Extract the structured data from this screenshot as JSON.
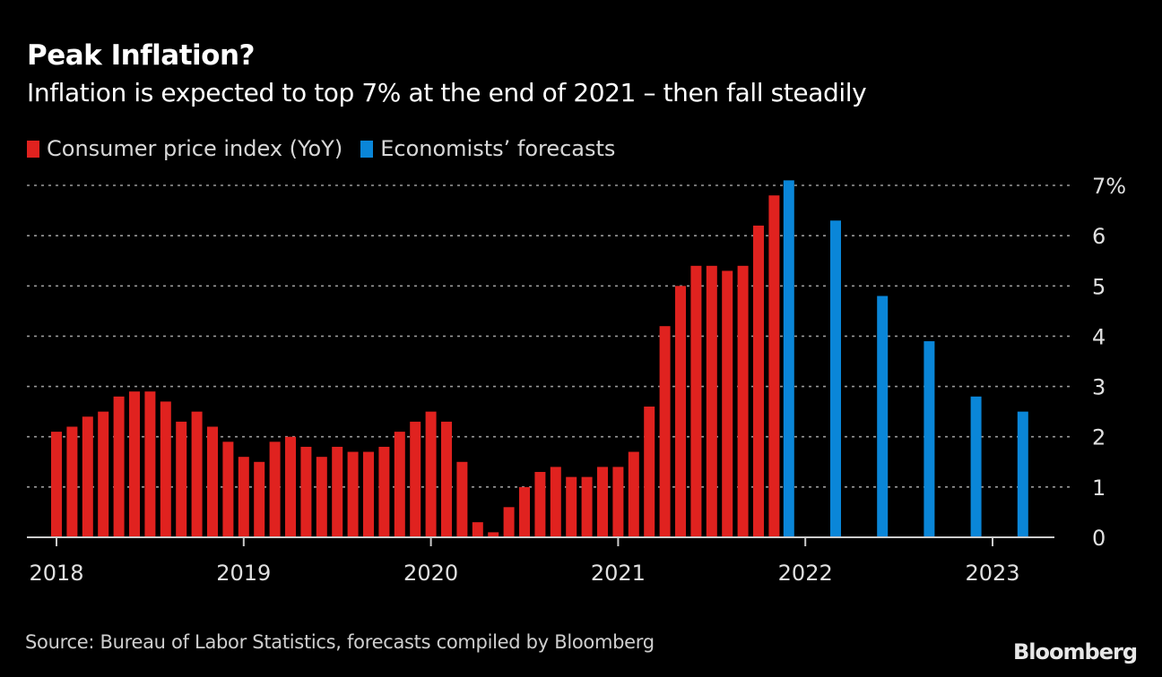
{
  "chart_data": {
    "type": "bar",
    "title": "Peak Inflation?",
    "subtitle": "Inflation is expected to top 7% at the end of 2021 – then fall steadily",
    "xlabel": "",
    "ylabel": "",
    "ylim": [
      0,
      7
    ],
    "yticks": [
      "0",
      "1",
      "2",
      "3",
      "4",
      "5",
      "6",
      "7%"
    ],
    "ytick_values": [
      0,
      1,
      2,
      3,
      4,
      5,
      6,
      7
    ],
    "xticks": [
      "2018",
      "2019",
      "2020",
      "2021",
      "2022",
      "2023"
    ],
    "grid": true,
    "legend_position": "top-left",
    "series": [
      {
        "name": "Consumer price index (YoY)",
        "color": "#e0221f",
        "start": "2018-01",
        "frequency": "monthly",
        "values": [
          2.1,
          2.2,
          2.4,
          2.5,
          2.8,
          2.9,
          2.9,
          2.7,
          2.3,
          2.5,
          2.2,
          1.9,
          1.6,
          1.5,
          1.9,
          2.0,
          1.8,
          1.6,
          1.8,
          1.7,
          1.7,
          1.8,
          2.1,
          2.3,
          2.5,
          2.3,
          1.5,
          0.3,
          0.1,
          0.6,
          1.0,
          1.3,
          1.4,
          1.2,
          1.2,
          1.4,
          1.4,
          1.7,
          2.6,
          4.2,
          5.0,
          5.4,
          5.4,
          5.3,
          5.4,
          6.2,
          6.8
        ]
      },
      {
        "name": "Economists’ forecasts",
        "color": "#0a86d8",
        "periods": [
          "2021-12",
          "2022-Q1",
          "2022-Q2",
          "2022-Q3",
          "2022-Q4",
          "2023-Q1"
        ],
        "month_index": [
          47,
          50,
          53,
          56,
          59,
          62
        ],
        "values": [
          7.1,
          6.3,
          4.8,
          3.9,
          2.8,
          2.5
        ]
      }
    ]
  },
  "legend": {
    "cpi_label": "Consumer price index (YoY)",
    "forecast_label": "Economists’ forecasts"
  },
  "footer": {
    "source": "Source: Bureau of Labor Statistics, forecasts compiled by Bloomberg",
    "brand": "Bloomberg"
  },
  "colors": {
    "background": "#000000",
    "cpi": "#e0221f",
    "forecast": "#0a86d8",
    "grid": "#9a9a9a",
    "axis": "#cccccc"
  }
}
